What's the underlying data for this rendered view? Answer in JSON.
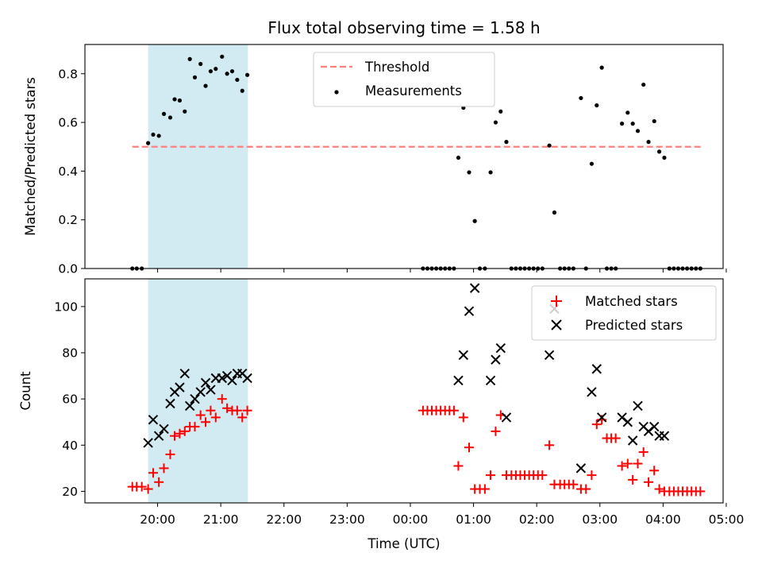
{
  "title": "Flux total observing time = 1.58 h",
  "xlabel": "Time (UTC)",
  "x_tick_labels": [
    "20:00",
    "21:00",
    "22:00",
    "23:00",
    "00:00",
    "01:00",
    "02:00",
    "03:00",
    "04:00",
    "05:00"
  ],
  "colors": {
    "threshold": "#ff7f7f",
    "measurement": "#000000",
    "matched": "#ff0000",
    "predicted": "#000000",
    "shade": "#add8e6"
  },
  "chart_data": [
    {
      "type": "scatter",
      "ylabel": "Matched/Predicted stars",
      "ylim": [
        0,
        0.92
      ],
      "x_unit": "hours after 20:00 UTC",
      "shaded_window": [
        -0.15,
        1.43
      ],
      "legend_position": "upper-center",
      "y_tick_labels": [
        "0.0",
        "0.2",
        "0.4",
        "0.6",
        "0.8"
      ],
      "threshold": {
        "name": "Threshold",
        "y": 0.5,
        "x_range": [
          -0.4,
          8.6
        ]
      },
      "series": [
        {
          "name": "Measurements",
          "points": [
            [
              -0.4,
              0
            ],
            [
              -0.33,
              0
            ],
            [
              -0.25,
              0
            ],
            [
              -0.15,
              0.515
            ],
            [
              -0.07,
              0.55
            ],
            [
              0.02,
              0.545
            ],
            [
              0.1,
              0.635
            ],
            [
              0.2,
              0.62
            ],
            [
              0.27,
              0.695
            ],
            [
              0.35,
              0.69
            ],
            [
              0.43,
              0.645
            ],
            [
              0.51,
              0.86
            ],
            [
              0.59,
              0.785
            ],
            [
              0.68,
              0.84
            ],
            [
              0.76,
              0.75
            ],
            [
              0.84,
              0.81
            ],
            [
              0.92,
              0.82
            ],
            [
              1.02,
              0.87
            ],
            [
              1.1,
              0.8
            ],
            [
              1.18,
              0.81
            ],
            [
              1.26,
              0.775
            ],
            [
              1.34,
              0.73
            ],
            [
              1.42,
              0.795
            ],
            [
              4.2,
              0
            ],
            [
              4.27,
              0
            ],
            [
              4.34,
              0
            ],
            [
              4.41,
              0
            ],
            [
              4.48,
              0
            ],
            [
              4.55,
              0
            ],
            [
              4.62,
              0
            ],
            [
              4.69,
              0
            ],
            [
              4.76,
              0.455
            ],
            [
              4.84,
              0.66
            ],
            [
              4.93,
              0.395
            ],
            [
              5.02,
              0.195
            ],
            [
              5.1,
              0
            ],
            [
              5.18,
              0
            ],
            [
              5.27,
              0.395
            ],
            [
              5.35,
              0.6
            ],
            [
              5.43,
              0.645
            ],
            [
              5.52,
              0.52
            ],
            [
              5.6,
              0
            ],
            [
              5.67,
              0
            ],
            [
              5.74,
              0
            ],
            [
              5.81,
              0
            ],
            [
              5.88,
              0
            ],
            [
              5.95,
              0
            ],
            [
              6.02,
              0
            ],
            [
              6.09,
              0
            ],
            [
              6.2,
              0.505
            ],
            [
              6.28,
              0.23
            ],
            [
              6.37,
              0
            ],
            [
              6.44,
              0
            ],
            [
              6.51,
              0
            ],
            [
              6.58,
              0
            ],
            [
              6.7,
              0.7
            ],
            [
              6.78,
              0
            ],
            [
              6.87,
              0.43
            ],
            [
              6.95,
              0.67
            ],
            [
              7.03,
              0.825
            ],
            [
              7.11,
              0
            ],
            [
              7.18,
              0
            ],
            [
              7.25,
              0
            ],
            [
              7.35,
              0.595
            ],
            [
              7.44,
              0.64
            ],
            [
              7.52,
              0.595
            ],
            [
              7.6,
              0.565
            ],
            [
              7.69,
              0.755
            ],
            [
              7.77,
              0.52
            ],
            [
              7.86,
              0.605
            ],
            [
              7.94,
              0.48
            ],
            [
              8.02,
              0.455
            ],
            [
              8.1,
              0
            ],
            [
              8.17,
              0
            ],
            [
              8.24,
              0
            ],
            [
              8.31,
              0
            ],
            [
              8.38,
              0
            ],
            [
              8.45,
              0
            ],
            [
              8.52,
              0
            ],
            [
              8.59,
              0
            ]
          ]
        }
      ]
    },
    {
      "type": "scatter",
      "ylabel": "Count",
      "ylim": [
        15,
        112
      ],
      "x_unit": "hours after 20:00 UTC",
      "shaded_window": [
        -0.15,
        1.43
      ],
      "legend_position": "upper-right",
      "y_tick_labels": [
        "20",
        "40",
        "60",
        "80",
        "100"
      ],
      "series": [
        {
          "name": "Matched stars",
          "marker": "+",
          "points": [
            [
              -0.4,
              22
            ],
            [
              -0.33,
              22
            ],
            [
              -0.25,
              22
            ],
            [
              -0.15,
              21
            ],
            [
              -0.07,
              28
            ],
            [
              0.02,
              24
            ],
            [
              0.1,
              30
            ],
            [
              0.2,
              36
            ],
            [
              0.27,
              44
            ],
            [
              0.35,
              45
            ],
            [
              0.43,
              46
            ],
            [
              0.51,
              48
            ],
            [
              0.59,
              48
            ],
            [
              0.68,
              53
            ],
            [
              0.76,
              50
            ],
            [
              0.84,
              55
            ],
            [
              0.92,
              52
            ],
            [
              1.02,
              60
            ],
            [
              1.1,
              56
            ],
            [
              1.18,
              55
            ],
            [
              1.26,
              55
            ],
            [
              1.34,
              52
            ],
            [
              1.42,
              55
            ],
            [
              4.2,
              55
            ],
            [
              4.27,
              55
            ],
            [
              4.34,
              55
            ],
            [
              4.41,
              55
            ],
            [
              4.48,
              55
            ],
            [
              4.55,
              55
            ],
            [
              4.62,
              55
            ],
            [
              4.69,
              55
            ],
            [
              4.76,
              31
            ],
            [
              4.84,
              52
            ],
            [
              4.93,
              39
            ],
            [
              5.02,
              21
            ],
            [
              5.1,
              21
            ],
            [
              5.18,
              21
            ],
            [
              5.27,
              27
            ],
            [
              5.35,
              46
            ],
            [
              5.43,
              53
            ],
            [
              5.52,
              27
            ],
            [
              5.6,
              27
            ],
            [
              5.67,
              27
            ],
            [
              5.74,
              27
            ],
            [
              5.81,
              27
            ],
            [
              5.88,
              27
            ],
            [
              5.95,
              27
            ],
            [
              6.02,
              27
            ],
            [
              6.09,
              27
            ],
            [
              6.2,
              40
            ],
            [
              6.28,
              23
            ],
            [
              6.37,
              23
            ],
            [
              6.44,
              23
            ],
            [
              6.51,
              23
            ],
            [
              6.58,
              23
            ],
            [
              6.7,
              21
            ],
            [
              6.78,
              21
            ],
            [
              6.87,
              27
            ],
            [
              6.95,
              49
            ],
            [
              7.03,
              51
            ],
            [
              7.11,
              43
            ],
            [
              7.18,
              43
            ],
            [
              7.25,
              43
            ],
            [
              7.35,
              31
            ],
            [
              7.44,
              32
            ],
            [
              7.52,
              25
            ],
            [
              7.6,
              32
            ],
            [
              7.69,
              37
            ],
            [
              7.77,
              24
            ],
            [
              7.86,
              29
            ],
            [
              7.94,
              21
            ],
            [
              8.02,
              20
            ],
            [
              8.1,
              20
            ],
            [
              8.17,
              20
            ],
            [
              8.24,
              20
            ],
            [
              8.31,
              20
            ],
            [
              8.38,
              20
            ],
            [
              8.45,
              20
            ],
            [
              8.52,
              20
            ],
            [
              8.59,
              20
            ]
          ]
        },
        {
          "name": "Predicted stars",
          "marker": "x",
          "points": [
            [
              -0.15,
              41
            ],
            [
              -0.07,
              51
            ],
            [
              0.02,
              44
            ],
            [
              0.1,
              47
            ],
            [
              0.2,
              58
            ],
            [
              0.27,
              63
            ],
            [
              0.35,
              65
            ],
            [
              0.43,
              71
            ],
            [
              0.51,
              57
            ],
            [
              0.59,
              60
            ],
            [
              0.68,
              63
            ],
            [
              0.76,
              67
            ],
            [
              0.84,
              64
            ],
            [
              0.92,
              69
            ],
            [
              1.02,
              69
            ],
            [
              1.1,
              70
            ],
            [
              1.18,
              68
            ],
            [
              1.26,
              71
            ],
            [
              1.34,
              71
            ],
            [
              1.42,
              69
            ],
            [
              4.76,
              68
            ],
            [
              4.84,
              79
            ],
            [
              4.93,
              98
            ],
            [
              5.02,
              108
            ],
            [
              5.27,
              68
            ],
            [
              5.35,
              77
            ],
            [
              5.43,
              82
            ],
            [
              5.52,
              52
            ],
            [
              6.2,
              79
            ],
            [
              6.28,
              99
            ],
            [
              6.7,
              30
            ],
            [
              6.87,
              63
            ],
            [
              6.95,
              73
            ],
            [
              7.03,
              52
            ],
            [
              7.35,
              52
            ],
            [
              7.44,
              50
            ],
            [
              7.52,
              42
            ],
            [
              7.6,
              57
            ],
            [
              7.69,
              48
            ],
            [
              7.77,
              46
            ],
            [
              7.86,
              48
            ],
            [
              7.94,
              44
            ],
            [
              8.02,
              44
            ]
          ]
        }
      ]
    }
  ],
  "legends": {
    "top": [
      "Threshold",
      "Measurements"
    ],
    "bottom": [
      "Matched stars",
      "Predicted stars"
    ]
  }
}
